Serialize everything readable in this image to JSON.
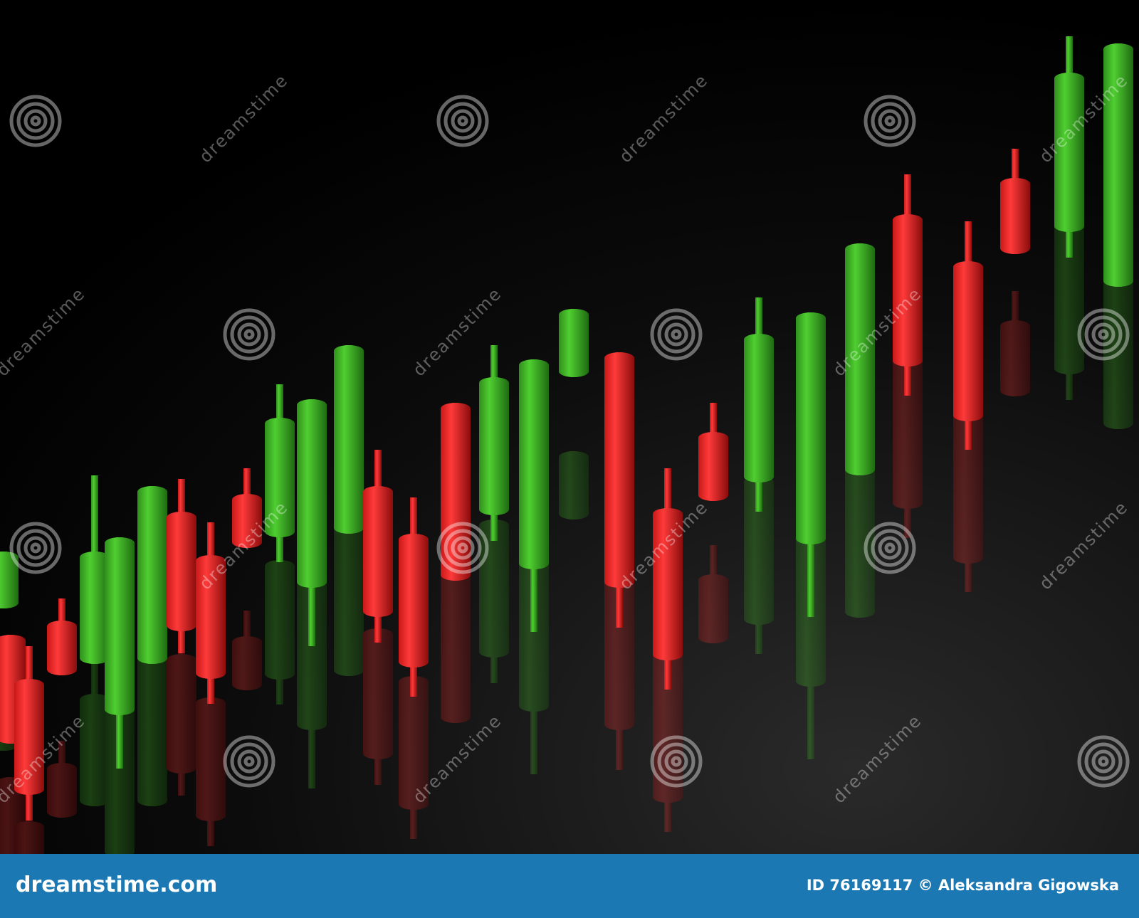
{
  "watermark": "dreamstime",
  "footer": {
    "site": "dreamstime.com",
    "credit": "ID 76169117 © Aleksandra Gigowska"
  }
}
